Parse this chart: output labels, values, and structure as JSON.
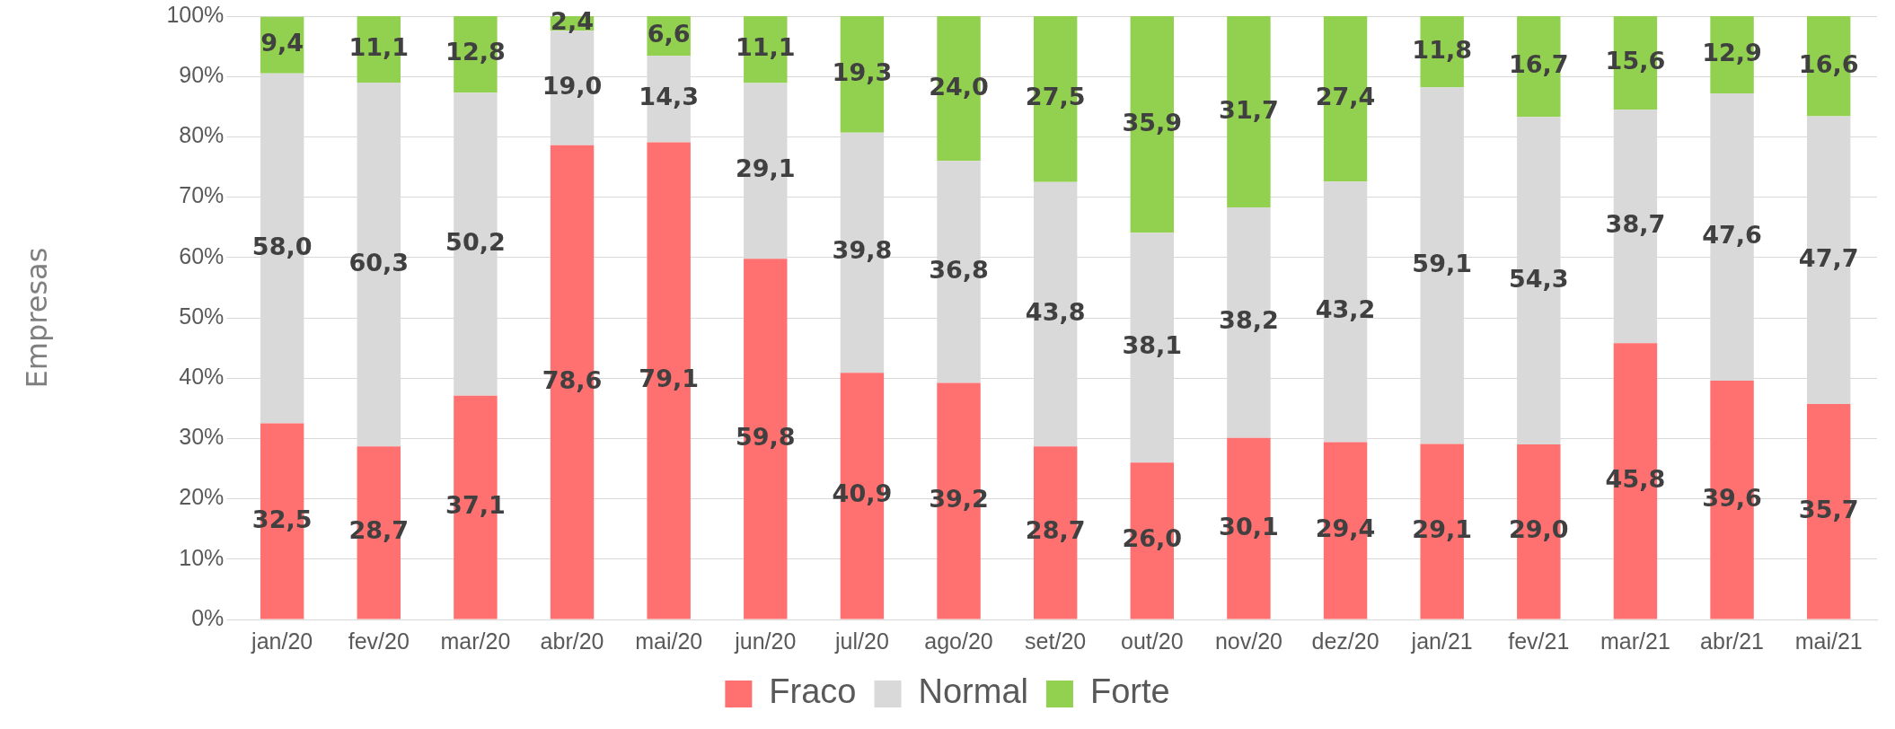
{
  "chart_data": {
    "type": "bar",
    "stacked": true,
    "ylabel": "Empresas",
    "categories": [
      "jan/20",
      "fev/20",
      "mar/20",
      "abr/20",
      "mai/20",
      "jun/20",
      "jul/20",
      "ago/20",
      "set/20",
      "out/20",
      "nov/20",
      "dez/20",
      "jan/21",
      "fev/21",
      "mar/21",
      "abr/21",
      "mai/21"
    ],
    "series": [
      {
        "name": "Fraco",
        "color": "#ff7070",
        "values": [
          32.5,
          28.7,
          37.1,
          78.6,
          79.1,
          59.8,
          40.9,
          39.2,
          28.7,
          26.0,
          30.1,
          29.4,
          29.1,
          29.0,
          45.8,
          39.6,
          35.7
        ],
        "value_labels": [
          "32,5",
          "28,7",
          "37,1",
          "78,6",
          "79,1",
          "59,8",
          "40,9",
          "39,2",
          "28,7",
          "26,0",
          "30,1",
          "29,4",
          "29,1",
          "29,0",
          "45,8",
          "39,6",
          "35,7"
        ]
      },
      {
        "name": "Normal",
        "color": "#d9d9d9",
        "values": [
          58.0,
          60.3,
          50.2,
          19.0,
          14.3,
          29.1,
          39.8,
          36.8,
          43.8,
          38.1,
          38.2,
          43.2,
          59.1,
          54.3,
          38.7,
          47.6,
          47.7
        ],
        "value_labels": [
          "58,0",
          "60,3",
          "50,2",
          "19,0",
          "14,3",
          "29,1",
          "39,8",
          "36,8",
          "43,8",
          "38,1",
          "38,2",
          "43,2",
          "59,1",
          "54,3",
          "38,7",
          "47,6",
          "47,7"
        ]
      },
      {
        "name": "Forte",
        "color": "#92d050",
        "values": [
          9.4,
          11.1,
          12.8,
          2.4,
          6.6,
          11.1,
          19.3,
          24.0,
          27.5,
          35.9,
          31.7,
          27.4,
          11.8,
          16.7,
          15.6,
          12.9,
          16.6
        ],
        "value_labels": [
          "9,4",
          "11,1",
          "12,8",
          "2,4",
          "6,6",
          "11,1",
          "19,3",
          "24,0",
          "27,5",
          "35,9",
          "31,7",
          "27,4",
          "11,8",
          "16,7",
          "15,6",
          "12,9",
          "16,6"
        ]
      }
    ],
    "ylim": [
      0,
      100
    ],
    "yticks": [
      {
        "value": 0,
        "label": "0%"
      },
      {
        "value": 10,
        "label": "10%"
      },
      {
        "value": 20,
        "label": "20%"
      },
      {
        "value": 30,
        "label": "30%"
      },
      {
        "value": 40,
        "label": "40%"
      },
      {
        "value": 50,
        "label": "50%"
      },
      {
        "value": 60,
        "label": "60%"
      },
      {
        "value": 70,
        "label": "70%"
      },
      {
        "value": 80,
        "label": "80%"
      },
      {
        "value": 90,
        "label": "90%"
      },
      {
        "value": 100,
        "label": "100%"
      }
    ],
    "grid": "y",
    "legend": "bottom"
  }
}
